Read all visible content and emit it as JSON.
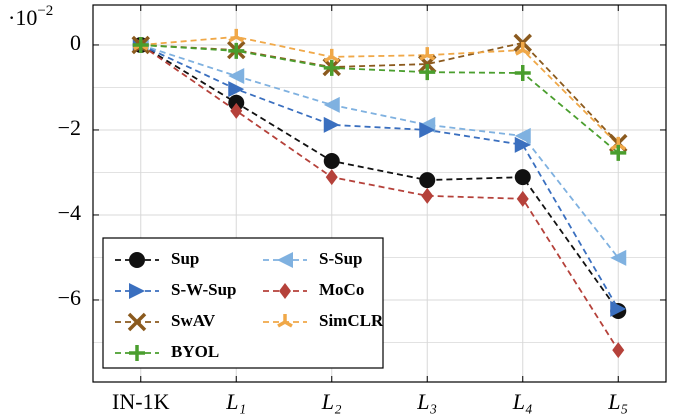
{
  "chart_data": {
    "type": "line",
    "y_multiplier": {
      "base": "·10",
      "exponent": "−2"
    },
    "categories": [
      "IN-1K",
      "L₁",
      "L₂",
      "L₃",
      "L₄",
      "L₅"
    ],
    "ylim": [
      -7.93,
      0.94
    ],
    "yticks": [
      {
        "value": -6,
        "label": "−6"
      },
      {
        "value": -4,
        "label": "−4"
      },
      {
        "value": -2,
        "label": "−2"
      },
      0
    ],
    "minor_yticks": [
      -7,
      -5,
      -3,
      -1
    ],
    "grid": true,
    "legend_position": "lower left",
    "series": [
      {
        "name": "Sup",
        "color": "#111111",
        "marker": "circle",
        "values": [
          0,
          -1.36,
          -2.73,
          -3.18,
          -3.11,
          -6.26
        ]
      },
      {
        "name": "S-Sup",
        "color": "#7fb1e0",
        "marker": "triangle-left",
        "values": [
          0,
          -0.73,
          -1.41,
          -1.88,
          -2.14,
          -5.01
        ]
      },
      {
        "name": "S-W-Sup",
        "color": "#3a6fbf",
        "marker": "triangle-right",
        "values": [
          0,
          -1.04,
          -1.88,
          -2.0,
          -2.35,
          -6.21
        ]
      },
      {
        "name": "MoCo",
        "color": "#b5413a",
        "marker": "diamond",
        "values": [
          0,
          -1.55,
          -3.11,
          -3.55,
          -3.62,
          -7.18
        ]
      },
      {
        "name": "SwAV",
        "color": "#8b5a1e",
        "marker": "x",
        "values": [
          0,
          -0.12,
          -0.52,
          -0.45,
          0.05,
          -2.31
        ]
      },
      {
        "name": "SimCLR",
        "color": "#f0a848",
        "marker": "tripod",
        "values": [
          0,
          0.19,
          -0.28,
          -0.24,
          -0.12,
          -2.35
        ]
      },
      {
        "name": "BYOL",
        "color": "#4a9e2e",
        "marker": "plus",
        "values": [
          0,
          -0.14,
          -0.54,
          -0.64,
          -0.66,
          -2.54
        ]
      }
    ]
  }
}
